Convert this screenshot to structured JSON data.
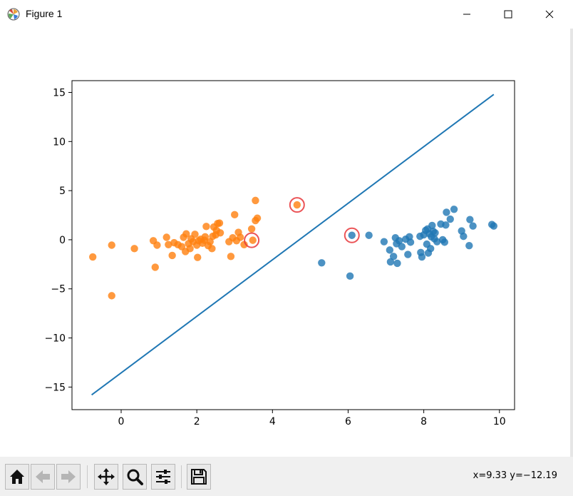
{
  "window": {
    "title": "Figure 1",
    "icons": {
      "app": "matplotlib-figure-icon",
      "minimize": "minimize-icon",
      "maximize": "maximize-icon",
      "close": "close-icon"
    }
  },
  "toolbar": {
    "buttons": [
      {
        "name": "home-icon",
        "enabled": true
      },
      {
        "name": "back-arrow-icon",
        "enabled": false
      },
      {
        "name": "forward-arrow-icon",
        "enabled": false
      },
      {
        "name": "pan-icon",
        "enabled": true
      },
      {
        "name": "zoom-icon",
        "enabled": true
      },
      {
        "name": "configure-subplots-icon",
        "enabled": true
      },
      {
        "name": "save-icon",
        "enabled": true
      }
    ],
    "coords_text": "x=9.33 y=−12.19"
  },
  "chart_data": {
    "type": "scatter",
    "xlim": [
      -1.3,
      10.4
    ],
    "ylim": [
      -17.3,
      16.2
    ],
    "xticks": [
      0,
      2,
      4,
      6,
      8,
      10
    ],
    "yticks": [
      -15,
      -10,
      -5,
      0,
      5,
      10,
      15
    ],
    "grid": false,
    "colors": {
      "class0": "#ff7f0e",
      "class1": "#1f77b4",
      "line": "#1f77b4",
      "support_vector": "#e8363a"
    },
    "series": [
      {
        "class": "class0",
        "color": "#ff7f0e",
        "points": [
          [
            -0.75,
            -1.75
          ],
          [
            -0.25,
            -0.55
          ],
          [
            -0.25,
            -5.7
          ],
          [
            0.35,
            -0.9
          ],
          [
            0.85,
            -0.1
          ],
          [
            0.9,
            -2.8
          ],
          [
            0.95,
            -0.55
          ],
          [
            1.2,
            0.25
          ],
          [
            1.25,
            -0.5
          ],
          [
            1.35,
            -1.6
          ],
          [
            1.4,
            -0.3
          ],
          [
            1.5,
            -0.5
          ],
          [
            1.6,
            -0.7
          ],
          [
            1.65,
            0.25
          ],
          [
            1.7,
            -1.2
          ],
          [
            1.72,
            0.6
          ],
          [
            1.78,
            -0.4
          ],
          [
            1.82,
            -0.9
          ],
          [
            1.85,
            0.1
          ],
          [
            1.9,
            -0.2
          ],
          [
            1.95,
            0.55
          ],
          [
            2.0,
            -0.55
          ],
          [
            2.02,
            -1.8
          ],
          [
            2.05,
            -0.1
          ],
          [
            2.1,
            0.05
          ],
          [
            2.15,
            -0.35
          ],
          [
            2.2,
            -0.05
          ],
          [
            2.22,
            0.3
          ],
          [
            2.25,
            1.35
          ],
          [
            2.3,
            -0.6
          ],
          [
            2.35,
            -0.2
          ],
          [
            2.4,
            -0.9
          ],
          [
            2.42,
            0.35
          ],
          [
            2.45,
            1.3
          ],
          [
            2.5,
            0.5
          ],
          [
            2.52,
            0.95
          ],
          [
            2.55,
            1.65
          ],
          [
            2.6,
            1.7
          ],
          [
            2.62,
            0.7
          ],
          [
            2.85,
            -0.2
          ],
          [
            2.9,
            -1.7
          ],
          [
            2.95,
            0.2
          ],
          [
            3.0,
            2.55
          ],
          [
            3.05,
            -0.1
          ],
          [
            3.1,
            0.75
          ],
          [
            3.15,
            0.25
          ],
          [
            3.25,
            -0.5
          ],
          [
            3.45,
            1.1
          ],
          [
            3.48,
            -0.05
          ],
          [
            3.55,
            1.95
          ],
          [
            3.55,
            4.0
          ],
          [
            3.6,
            2.2
          ],
          [
            4.65,
            3.55
          ]
        ]
      },
      {
        "class": "class1",
        "color": "#1f77b4",
        "points": [
          [
            5.3,
            -2.35
          ],
          [
            6.05,
            -3.7
          ],
          [
            6.1,
            0.45
          ],
          [
            6.55,
            0.45
          ],
          [
            6.95,
            -0.2
          ],
          [
            7.1,
            -1.05
          ],
          [
            7.12,
            -2.25
          ],
          [
            7.2,
            -1.7
          ],
          [
            7.25,
            0.2
          ],
          [
            7.28,
            -0.4
          ],
          [
            7.3,
            -2.4
          ],
          [
            7.35,
            -0.1
          ],
          [
            7.42,
            -0.7
          ],
          [
            7.52,
            0.05
          ],
          [
            7.58,
            -1.5
          ],
          [
            7.62,
            0.3
          ],
          [
            7.65,
            -0.25
          ],
          [
            7.9,
            0.35
          ],
          [
            7.92,
            -1.3
          ],
          [
            7.95,
            -1.75
          ],
          [
            8.0,
            0.5
          ],
          [
            8.05,
            0.95
          ],
          [
            8.08,
            -0.45
          ],
          [
            8.1,
            1.1
          ],
          [
            8.12,
            -1.35
          ],
          [
            8.15,
            0.6
          ],
          [
            8.18,
            -0.9
          ],
          [
            8.2,
            0.3
          ],
          [
            8.22,
            1.45
          ],
          [
            8.25,
            0.85
          ],
          [
            8.28,
            0.1
          ],
          [
            8.3,
            0.7
          ],
          [
            8.35,
            -0.2
          ],
          [
            8.45,
            1.6
          ],
          [
            8.5,
            0.0
          ],
          [
            8.55,
            -0.25
          ],
          [
            8.58,
            1.5
          ],
          [
            8.6,
            2.8
          ],
          [
            8.7,
            2.1
          ],
          [
            8.8,
            3.1
          ],
          [
            9.0,
            0.9
          ],
          [
            9.05,
            0.35
          ],
          [
            9.2,
            -0.6
          ],
          [
            9.22,
            2.05
          ],
          [
            9.3,
            1.4
          ],
          [
            9.8,
            1.55
          ],
          [
            9.85,
            1.4
          ]
        ]
      }
    ],
    "support_vectors": [
      [
        3.45,
        -0.05
      ],
      [
        4.65,
        3.55
      ],
      [
        6.1,
        0.45
      ]
    ],
    "line": {
      "x": [
        -0.78,
        9.85
      ],
      "y": [
        -15.8,
        14.8
      ]
    }
  }
}
